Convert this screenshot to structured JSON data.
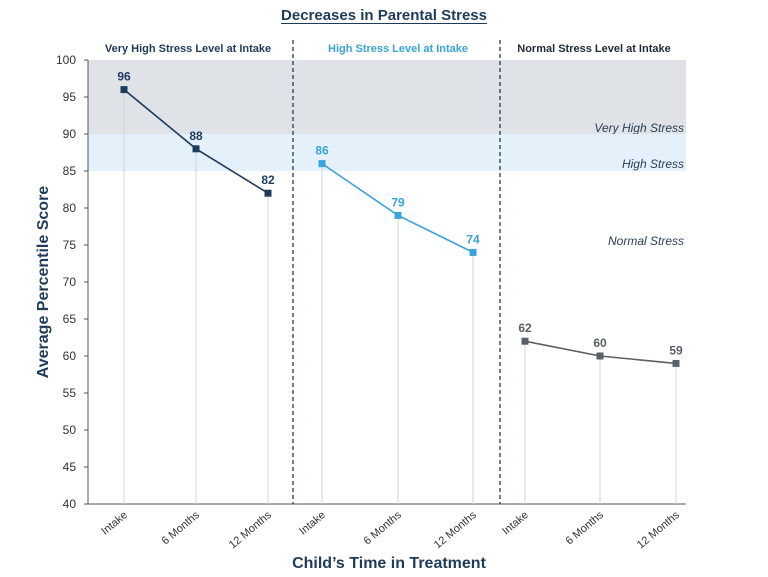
{
  "chart_data": {
    "type": "line",
    "title": "Decreases in Parental Stress",
    "xlabel": "Child’s Time in Treatment",
    "ylabel": "Average Percentile Score",
    "ylim": [
      40,
      100
    ],
    "yticks": [
      40,
      45,
      50,
      55,
      60,
      65,
      70,
      75,
      80,
      85,
      90,
      95,
      100
    ],
    "bands": [
      {
        "label": "Very High Stress",
        "from": 90,
        "to": 100,
        "color": "#dfe2e6"
      },
      {
        "label": "High Stress",
        "from": 85,
        "to": 90,
        "color": "#e4f1fa"
      },
      {
        "label": "Normal Stress",
        "from": null,
        "to": null,
        "color": null
      }
    ],
    "panels": [
      {
        "title": "Very High Stress Level at Intake",
        "title_color": "#1f3b5c",
        "color": "#1f3b5c",
        "categories": [
          "Intake",
          "6 Months",
          "12 Months"
        ],
        "values": [
          96,
          88,
          82
        ]
      },
      {
        "title": "High Stress Level at Intake",
        "title_color": "#3aa3d9",
        "color": "#3aa3d9",
        "categories": [
          "Intake",
          "6 Months",
          "12 Months"
        ],
        "values": [
          86,
          79,
          74
        ]
      },
      {
        "title": "Normal Stress Level at Intake",
        "title_color": "#1f2a36",
        "color": "#5a6068",
        "categories": [
          "Intake",
          "6 Months",
          "12 Months"
        ],
        "values": [
          62,
          60,
          59
        ]
      }
    ],
    "grid": false,
    "legend": "none"
  }
}
